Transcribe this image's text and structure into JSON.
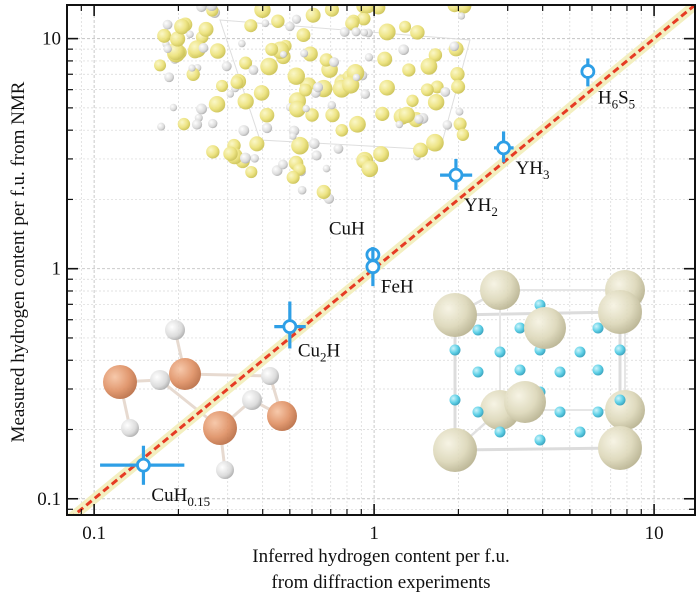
{
  "chart_data": {
    "type": "scatter",
    "xlabel": [
      "Inferred hydrogen content per f.u.",
      "from diffraction experiments"
    ],
    "ylabel": "Measured hydrogen content per f.u. from NMR",
    "xscale": "log",
    "yscale": "log",
    "xlim": [
      0.08,
      14
    ],
    "ylim": [
      0.085,
      14
    ],
    "x_ticks": [
      0.1,
      1,
      10
    ],
    "x_tick_labels": [
      "0.1",
      "1",
      "10"
    ],
    "y_ticks": [
      0.1,
      1,
      10
    ],
    "y_tick_labels": [
      "0.1",
      "1",
      "10"
    ],
    "grid": true,
    "reference_line": {
      "label": "",
      "slope": 1,
      "color": "#e63b24"
    },
    "marker_color": "#2e9fe6",
    "points": [
      {
        "label_main": "CuH",
        "label_sub": "0.15",
        "label_tail": "",
        "x": 0.15,
        "y": 0.14,
        "xerr": [
          0.105,
          0.21
        ],
        "yerr": [
          0.115,
          0.17
        ]
      },
      {
        "label_main": "Cu",
        "label_sub": "2",
        "label_tail": "H",
        "x": 0.5,
        "y": 0.56,
        "xerr": [
          0.44,
          0.57
        ],
        "yerr": [
          0.45,
          0.72
        ]
      },
      {
        "label_main": "CuH",
        "label_sub": "",
        "label_tail": "",
        "x": 0.99,
        "y": 1.15,
        "xerr": [
          0.96,
          1.02
        ],
        "yerr": [
          1.07,
          1.24
        ]
      },
      {
        "label_main": "FeH",
        "label_sub": "",
        "label_tail": "",
        "x": 0.99,
        "y": 1.02,
        "xerr": [
          0.95,
          1.03
        ],
        "yerr": [
          0.84,
          1.24
        ]
      },
      {
        "label_main": "YH",
        "label_sub": "2",
        "label_tail": "",
        "x": 1.96,
        "y": 2.55,
        "xerr": [
          1.72,
          2.24
        ],
        "yerr": [
          2.2,
          3.0
        ]
      },
      {
        "label_main": "YH",
        "label_sub": "3",
        "label_tail": "",
        "x": 2.9,
        "y": 3.35,
        "xerr": [
          2.68,
          3.15
        ],
        "yerr": [
          2.9,
          3.95
        ]
      },
      {
        "label_main": "H",
        "label_sub": "6",
        "label_tail": "S",
        "label_sub2": "5",
        "x": 5.8,
        "y": 7.2,
        "xerr": [
          5.55,
          6.05
        ],
        "yerr": [
          6.2,
          8.2
        ]
      }
    ]
  }
}
